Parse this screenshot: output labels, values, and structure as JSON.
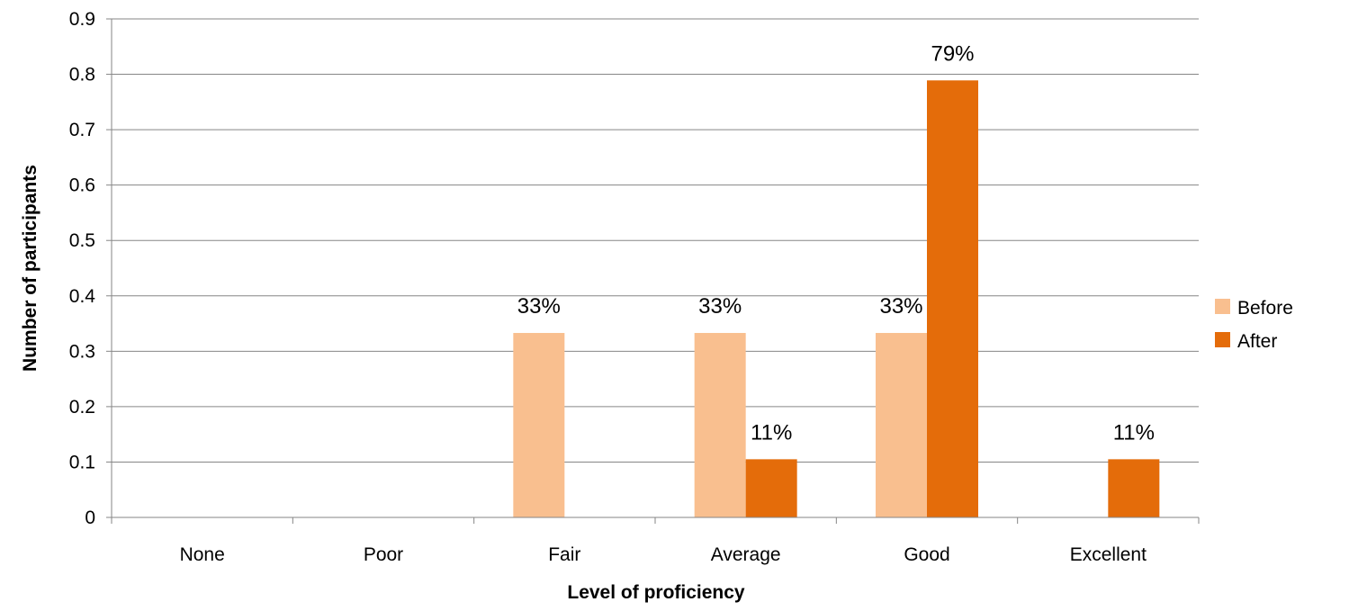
{
  "chart_data": {
    "type": "bar",
    "xlabel": "Level of proficiency",
    "ylabel": "Number of participants",
    "ylim": [
      0,
      0.9
    ],
    "yticks": [
      0,
      0.1,
      0.2,
      0.3,
      0.4,
      0.5,
      0.6,
      0.7,
      0.8,
      0.9
    ],
    "ytick_labels": [
      "0",
      "0.1",
      "0.2",
      "0.3",
      "0.4",
      "0.5",
      "0.6",
      "0.7",
      "0.8",
      "0.9"
    ],
    "grid": true,
    "legend_position": "right",
    "categories": [
      "None",
      "Poor",
      "Fair",
      "Average",
      "Good",
      "Excellent"
    ],
    "series": [
      {
        "name": "Before",
        "color": "#F9BF8F",
        "values": [
          0,
          0,
          0.333,
          0.333,
          0.333,
          0
        ],
        "labels": [
          "",
          "",
          "33%",
          "33%",
          "33%",
          ""
        ]
      },
      {
        "name": "After",
        "color": "#E46C0A",
        "values": [
          0,
          0,
          0,
          0.105,
          0.789,
          0.105
        ],
        "labels": [
          "",
          "",
          "",
          "11%",
          "79%",
          "11%"
        ]
      }
    ]
  }
}
